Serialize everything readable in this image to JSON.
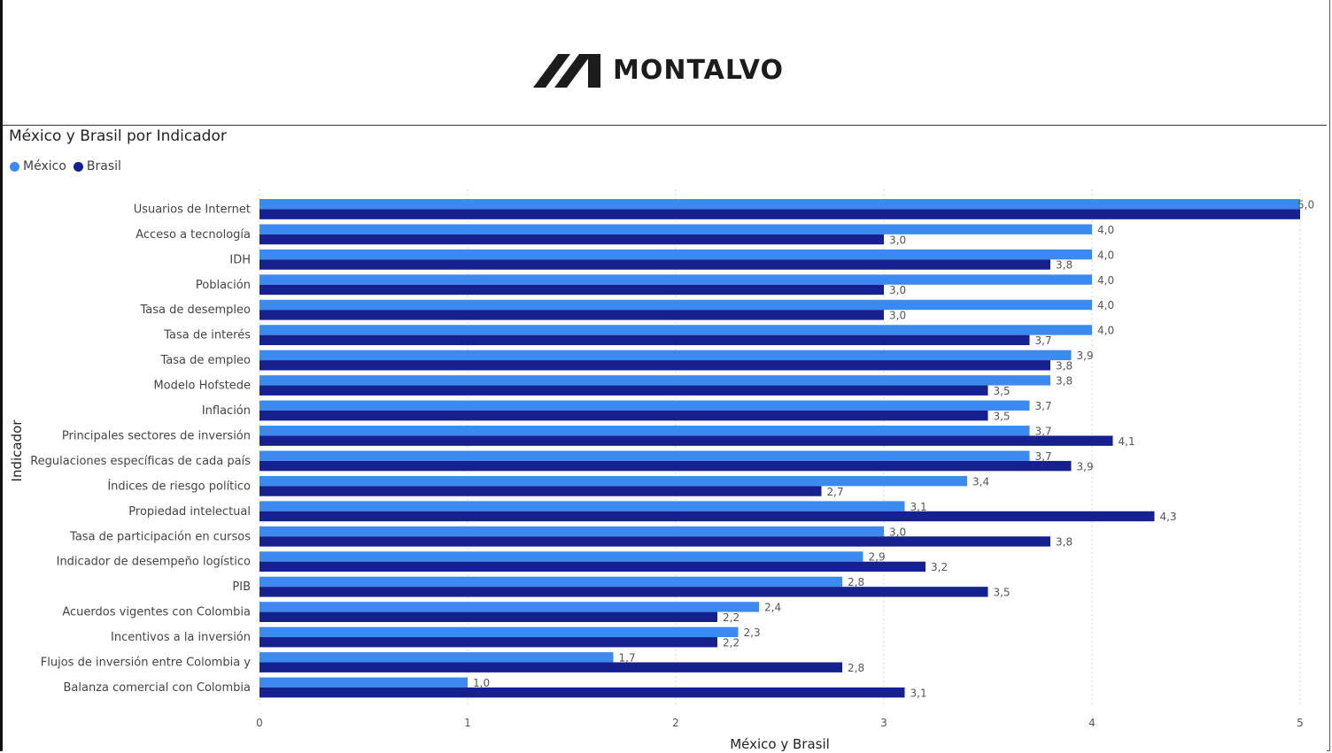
{
  "header": {
    "logo_text": "MONTALVO"
  },
  "chart_data": {
    "type": "bar",
    "orientation": "horizontal",
    "title": "México y Brasil por Indicador",
    "xlabel": "México y Brasil",
    "ylabel": "Indicador",
    "xlim": [
      0,
      5
    ],
    "x_ticks": [
      "0",
      "1",
      "2",
      "3",
      "4",
      "5"
    ],
    "grid": true,
    "legend_position": "top-left",
    "categories": [
      "Usuarios de Internet",
      "Acceso a tecnología",
      "IDH",
      "Población",
      "Tasa de desempleo",
      "Tasa de interés",
      "Tasa de empleo",
      "Modelo Hofstede",
      "Inflación",
      "Principales sectores de inversión",
      "Regulaciones específicas de cada país",
      "Índices de riesgo político",
      "Propiedad intelectual",
      "Tasa de participación en cursos",
      "Indicador de desempeño logístico",
      "PIB",
      "Acuerdos vigentes con Colombia",
      "Incentivos a la inversión",
      "Flujos de inversión entre Colombia y",
      "Balanza comercial con Colombia"
    ],
    "series": [
      {
        "name": "México",
        "color": "#3c8af0",
        "values": [
          5.0,
          4.0,
          4.0,
          4.0,
          4.0,
          4.0,
          3.9,
          3.8,
          3.7,
          3.7,
          3.7,
          3.4,
          3.1,
          3.0,
          2.9,
          2.8,
          2.4,
          2.3,
          1.7,
          1.0
        ],
        "labels": [
          "5,0",
          "4,0",
          "4,0",
          "4,0",
          "4,0",
          "4,0",
          "3,9",
          "3,8",
          "3,7",
          "3,7",
          "3,7",
          "3,4",
          "3,1",
          "3,0",
          "2,9",
          "2,8",
          "2,4",
          "2,3",
          "1,7",
          "1,0"
        ]
      },
      {
        "name": "Brasil",
        "color": "#16218f",
        "values": [
          5.0,
          3.0,
          3.8,
          3.0,
          3.0,
          3.7,
          3.8,
          3.5,
          3.5,
          4.1,
          3.9,
          2.7,
          4.3,
          3.8,
          3.2,
          3.5,
          2.2,
          2.2,
          2.8,
          3.1
        ],
        "labels": [
          "",
          "3,0",
          "3,8",
          "3,0",
          "3,0",
          "3,7",
          "3,8",
          "3,5",
          "3,5",
          "4,1",
          "3,9",
          "2,7",
          "4,3",
          "3,8",
          "3,2",
          "3,5",
          "2,2",
          "2,2",
          "2,8",
          "3,1"
        ]
      }
    ]
  }
}
